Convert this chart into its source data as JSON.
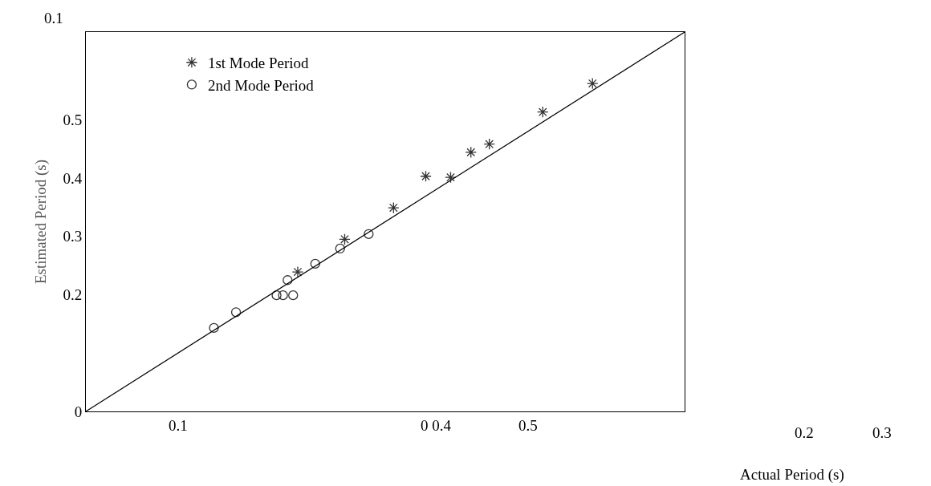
{
  "chart_data": {
    "type": "scatter",
    "xlabel": "Actual Period (s)",
    "ylabel": "Estimated Period (s)",
    "xlim": [
      0,
      0.65
    ],
    "ylim": [
      0,
      0.65
    ],
    "xticks": [
      0.1,
      {
        "value": 0.38,
        "label": "0 0.4"
      },
      {
        "value": 0.48,
        "label": "0.5"
      }
    ],
    "yticks": [
      0,
      0.2,
      0.3,
      0.4,
      0.5
    ],
    "annotations": [
      "0.1",
      "0.2",
      "0.3"
    ],
    "legend": "top left",
    "series": [
      {
        "name": "1st Mode Period",
        "color": "#333333",
        "marker": "cross",
        "x": [
          0.23,
          0.281,
          0.334,
          0.369,
          0.396,
          0.418,
          0.438,
          0.496,
          0.55
        ],
        "values": [
          0.239,
          0.295,
          0.349,
          0.403,
          0.401,
          0.444,
          0.458,
          0.513,
          0.562
        ]
      },
      {
        "name": "2nd Mode Period",
        "color": "#333333",
        "marker": "circle",
        "x": [
          0.139,
          0.163,
          0.207,
          0.214,
          0.225,
          0.219,
          0.249,
          0.276,
          0.307
        ],
        "values": [
          0.143,
          0.17,
          0.199,
          0.199,
          0.199,
          0.225,
          0.253,
          0.279,
          0.304
        ]
      },
      {
        "type": "line",
        "color": "#000000",
        "x": [
          0,
          0.65
        ],
        "values": [
          0,
          0.65
        ]
      }
    ]
  }
}
